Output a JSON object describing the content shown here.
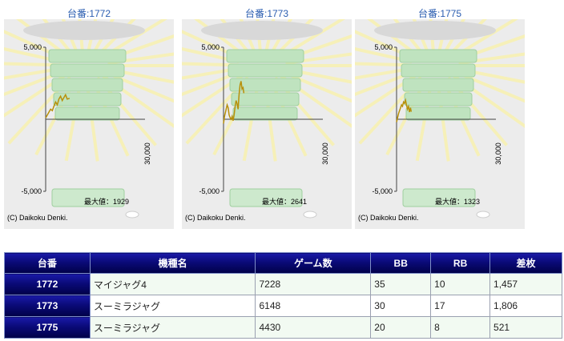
{
  "panels": [
    {
      "title": "台番:1772",
      "chart_data": {
        "type": "line",
        "ytick_labels": [
          "5,000",
          "-5,000"
        ],
        "xtick_label": "30,000",
        "ylim": [
          -5000,
          5000
        ],
        "xlim": [
          0,
          30000
        ],
        "max_label": "最大値：1929",
        "copyright": "(C) Daikoku Denki.",
        "points": [
          [
            0,
            100
          ],
          [
            500,
            300
          ],
          [
            1000,
            500
          ],
          [
            1500,
            700
          ],
          [
            2000,
            600
          ],
          [
            2500,
            900
          ],
          [
            3000,
            1200
          ],
          [
            3500,
            1000
          ],
          [
            4000,
            1400
          ],
          [
            4500,
            1600
          ],
          [
            5000,
            1300
          ],
          [
            5500,
            1500
          ],
          [
            6000,
            1700
          ],
          [
            6500,
            1400
          ],
          [
            7228,
            1457
          ]
        ]
      }
    },
    {
      "title": "台番:1773",
      "chart_data": {
        "type": "line",
        "ytick_labels": [
          "5,000",
          "-5,000"
        ],
        "xtick_label": "30,000",
        "ylim": [
          -5000,
          5000
        ],
        "xlim": [
          0,
          30000
        ],
        "max_label": "最大値：2641",
        "copyright": "(C) Daikoku Denki.",
        "points": [
          [
            0,
            -300
          ],
          [
            300,
            200
          ],
          [
            700,
            600
          ],
          [
            1100,
            1000
          ],
          [
            1400,
            800
          ],
          [
            1700,
            300
          ],
          [
            2000,
            100
          ],
          [
            2300,
            0
          ],
          [
            2600,
            200
          ],
          [
            2900,
            -100
          ],
          [
            3200,
            300
          ],
          [
            3500,
            900
          ],
          [
            3800,
            1300
          ],
          [
            4100,
            1100
          ],
          [
            4400,
            700
          ],
          [
            4700,
            1700
          ],
          [
            5000,
            2400
          ],
          [
            5300,
            2641
          ],
          [
            5600,
            2100
          ],
          [
            5900,
            2200
          ],
          [
            6148,
            1806
          ]
        ]
      }
    },
    {
      "title": "台番:1775",
      "chart_data": {
        "type": "line",
        "ytick_labels": [
          "5,000",
          "-5,000"
        ],
        "xtick_label": "30,000",
        "ylim": [
          -5000,
          5000
        ],
        "xlim": [
          0,
          30000
        ],
        "max_label": "最大値：1323",
        "copyright": "(C) Daikoku Denki.",
        "points": [
          [
            0,
            -200
          ],
          [
            300,
            100
          ],
          [
            600,
            400
          ],
          [
            900,
            600
          ],
          [
            1200,
            800
          ],
          [
            1500,
            1000
          ],
          [
            1800,
            900
          ],
          [
            2100,
            1200
          ],
          [
            2400,
            1100
          ],
          [
            2700,
            1323
          ],
          [
            3000,
            1000
          ],
          [
            3300,
            700
          ],
          [
            3600,
            900
          ],
          [
            3900,
            500
          ],
          [
            4200,
            800
          ],
          [
            4430,
            521
          ]
        ]
      }
    }
  ],
  "table": {
    "headers": [
      "台番",
      "機種名",
      "ゲーム数",
      "BB",
      "RB",
      "差枚"
    ],
    "rows": [
      [
        "1772",
        "マイジャグ4",
        "7228",
        "35",
        "10",
        "1,457"
      ],
      [
        "1773",
        "スーミラジャグ",
        "6148",
        "30",
        "17",
        "1,806"
      ],
      [
        "1775",
        "スーミラジャグ",
        "4430",
        "20",
        "8",
        "521"
      ]
    ]
  },
  "colors": {
    "line": "#b8900a",
    "title_text": "#2a5db0",
    "header_bg": "#0a0a78",
    "row_tint": "#f2faf2"
  }
}
